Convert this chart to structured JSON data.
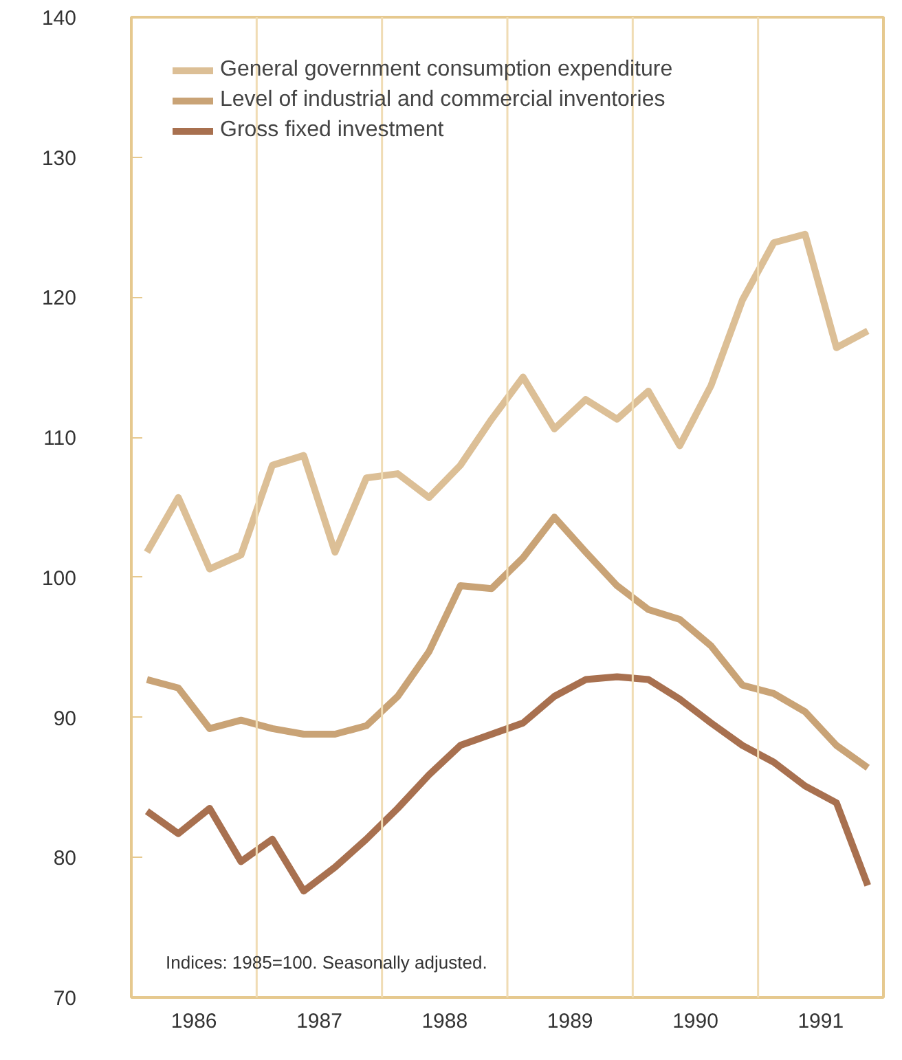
{
  "chart_data": {
    "type": "line",
    "x": [
      1986.125,
      1986.375,
      1986.625,
      1986.875,
      1987.125,
      1987.375,
      1987.625,
      1987.875,
      1988.125,
      1988.375,
      1988.625,
      1988.875,
      1989.125,
      1989.375,
      1989.625,
      1989.875,
      1990.125,
      1990.375,
      1990.625,
      1990.875,
      1991.125,
      1991.375,
      1991.625,
      1991.875
    ],
    "series": [
      {
        "name": "General government consumption expenditure",
        "color": "#dcbf96",
        "values": [
          101.8,
          105.7,
          100.6,
          101.6,
          108.0,
          108.7,
          101.8,
          107.1,
          107.4,
          105.7,
          108.0,
          111.3,
          114.3,
          110.6,
          112.7,
          111.3,
          113.3,
          109.4,
          113.7,
          119.8,
          123.9,
          124.5,
          116.4,
          117.6
        ]
      },
      {
        "name": "Level of industrial and commercial inventories",
        "color": "#c9a376",
        "values": [
          92.7,
          92.1,
          89.2,
          89.8,
          89.2,
          88.8,
          88.8,
          89.4,
          91.5,
          94.7,
          99.4,
          99.2,
          101.4,
          104.3,
          101.8,
          99.4,
          97.7,
          97.0,
          95.1,
          92.3,
          91.7,
          90.4,
          88.0,
          86.4
        ]
      },
      {
        "name": "Gross fixed investment",
        "color": "#a8704f",
        "values": [
          83.3,
          81.7,
          83.5,
          79.7,
          81.3,
          77.6,
          79.3,
          81.3,
          83.5,
          85.9,
          88.0,
          88.8,
          89.6,
          91.5,
          92.7,
          92.9,
          92.7,
          91.3,
          89.6,
          88.0,
          86.8,
          85.1,
          83.9,
          78.0
        ]
      }
    ],
    "xlim": [
      1986,
      1992
    ],
    "xticks": [
      {
        "value": 1986.5,
        "label": "1986"
      },
      {
        "value": 1987.5,
        "label": "1987"
      },
      {
        "value": 1988.5,
        "label": "1988"
      },
      {
        "value": 1989.5,
        "label": "1989"
      },
      {
        "value": 1990.5,
        "label": "1990"
      },
      {
        "value": 1991.5,
        "label": "1991"
      }
    ],
    "ylim": [
      70,
      140
    ],
    "yticks": [
      70,
      80,
      90,
      100,
      110,
      120,
      130,
      140
    ],
    "ref_lines": [
      {
        "axis": "x",
        "value": 1987,
        "color": "#f0dcb4"
      },
      {
        "axis": "x",
        "value": 1988,
        "color": "#f0dcb4"
      },
      {
        "axis": "x",
        "value": 1989,
        "color": "#f0dcb4"
      },
      {
        "axis": "x",
        "value": 1990,
        "color": "#f0dcb4"
      },
      {
        "axis": "x",
        "value": 1991,
        "color": "#f0dcb4"
      }
    ],
    "annotations": [
      "Indices: 1985=100. Seasonally adjusted."
    ],
    "grid": false,
    "legend": "top left",
    "marker": "none",
    "line_style": "solid"
  }
}
